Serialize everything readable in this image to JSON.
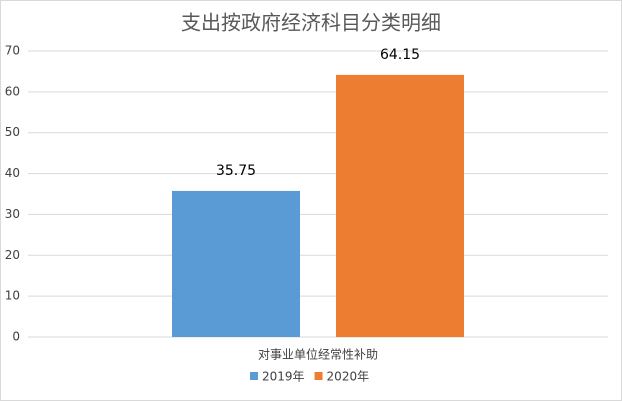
{
  "chart_data": {
    "type": "bar",
    "title": "支出按政府经济科目分类明细",
    "categories": [
      "对事业单位经常性补助"
    ],
    "series": [
      {
        "name": "2019年",
        "color": "#5b9bd5",
        "values": [
          35.75
        ]
      },
      {
        "name": "2020年",
        "color": "#ed7d31",
        "values": [
          64.15
        ]
      }
    ],
    "ylim": [
      0,
      70
    ],
    "yticks": [
      0,
      10,
      20,
      30,
      40,
      50,
      60,
      70
    ],
    "grid": true,
    "legend": "bottom"
  }
}
